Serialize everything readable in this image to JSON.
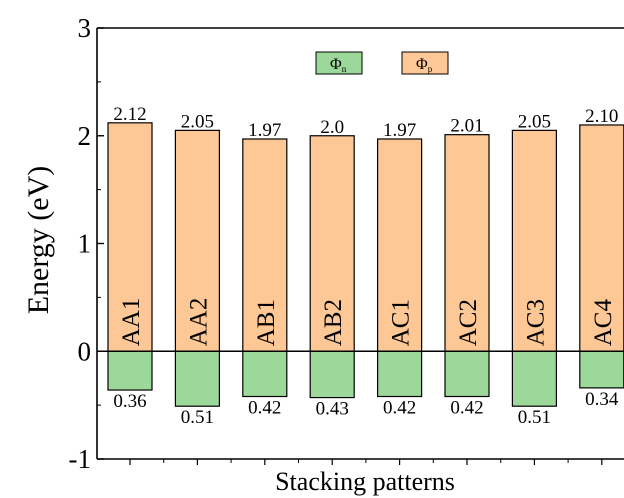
{
  "chart_data": {
    "type": "bar",
    "xlabel": "Stacking patterns",
    "ylabel": "Energy (eV)",
    "ylim": [
      -1,
      3
    ],
    "yticks": [
      "-1",
      "0",
      "1",
      "2",
      "3"
    ],
    "categories": [
      "AA1",
      "AA2",
      "AB1",
      "AB2",
      "AC1",
      "AC2",
      "AC3",
      "AC4"
    ],
    "series": [
      {
        "name": "Φp",
        "color": "#fdc796",
        "values": [
          2.12,
          2.05,
          1.97,
          2.0,
          1.97,
          2.01,
          2.05,
          2.1
        ],
        "labels": [
          "2.12",
          "2.05",
          "1.97",
          "2.0",
          "1.97",
          "2.01",
          "2.05",
          "2.10"
        ]
      },
      {
        "name": "Φn",
        "color": "#9dd89b",
        "values": [
          -0.36,
          -0.51,
          -0.42,
          -0.43,
          -0.42,
          -0.42,
          -0.51,
          -0.34
        ],
        "labels": [
          "0.36",
          "0.51",
          "0.42",
          "0.43",
          "0.42",
          "0.42",
          "0.51",
          "0.34"
        ]
      }
    ],
    "legend": {
      "position": "top-center",
      "entries": [
        {
          "base": "Φ",
          "sub": "n",
          "color": "#9dd89b"
        },
        {
          "base": "Φ",
          "sub": "p",
          "color": "#fdc796"
        }
      ]
    }
  }
}
